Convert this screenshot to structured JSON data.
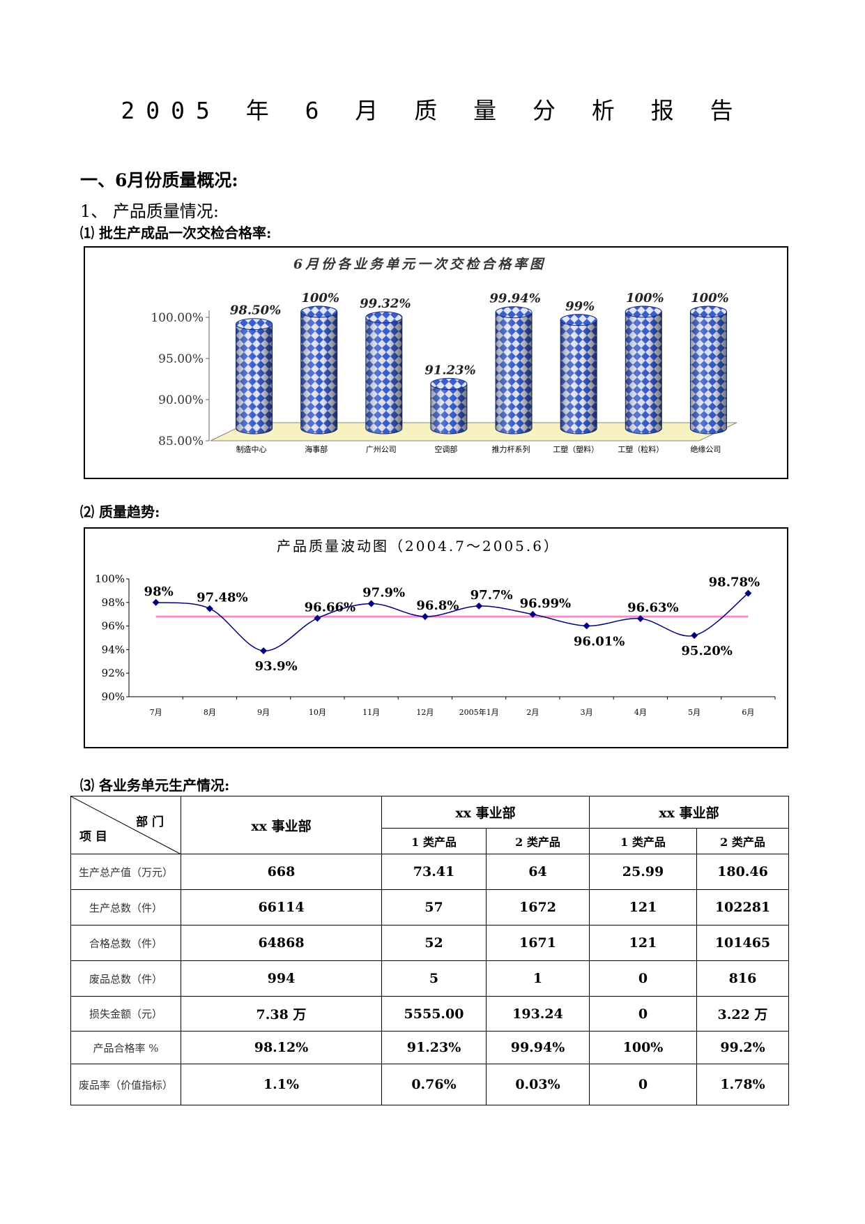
{
  "doc": {
    "title": "2005 年 6 月 质 量 分 析 报 告",
    "section1": "一、6月份质量概况:",
    "sub1": "1、 产品质量情况:",
    "item1": "⑴ 批生产成品一次交检合格率:",
    "item2": "⑵ 质量趋势:",
    "item3": "⑶ 各业务单元生产情况:"
  },
  "chart_data": [
    {
      "type": "bar",
      "title": "6月份各业务单元一次交检合格率图",
      "categories": [
        "制造中心",
        "海事部",
        "广州公司",
        "空调部",
        "推力杆系列",
        "工塑（塑料）",
        "工塑（粒料）",
        "绝缘公司"
      ],
      "values": [
        98.5,
        100,
        99.32,
        91.23,
        99.94,
        99,
        100,
        100
      ],
      "data_labels": [
        "98.50%",
        "100%",
        "99.32%",
        "91.23%",
        "99.94%",
        "99%",
        "100%",
        "100%"
      ],
      "yticks": [
        "100.00%",
        "95.00%",
        "90.00%",
        "85.00%"
      ],
      "ylim": [
        85,
        100
      ],
      "colors": {
        "bar": "#3b5ccc",
        "bar_dark": "#15287a",
        "pattern_light": "#dfe6f7",
        "floor": "#f7f2bf"
      }
    },
    {
      "type": "line",
      "title": "产品质量波动图（2004.7～2005.6）",
      "categories": [
        "7月",
        "8月",
        "9月",
        "10月",
        "11月",
        "12月",
        "2005年1月",
        "2月",
        "3月",
        "4月",
        "5月",
        "6月"
      ],
      "values": [
        98,
        97.48,
        93.9,
        96.66,
        97.9,
        96.8,
        97.7,
        96.99,
        96.01,
        96.63,
        95.2,
        98.78
      ],
      "data_labels": [
        "98%",
        "97.48%",
        "93.9%",
        "96.66%",
        "97.9%",
        "96.8%",
        "97.7%",
        "96.99%",
        "96.01%",
        "96.63%",
        "95.20%",
        "98.78%"
      ],
      "yticks": [
        "100%",
        "98%",
        "96%",
        "94%",
        "92%",
        "90%"
      ],
      "ylim": [
        90,
        100
      ],
      "reference_line": 96.8,
      "colors": {
        "line": "#000080",
        "reference": "#ff88cc"
      }
    }
  ],
  "table": {
    "corner_top": "部 门",
    "corner_bottom": "项 目",
    "dept_main": "xx 事业部",
    "dept_a": "xx 事业部",
    "dept_b": "xx 事业部",
    "sub_a1": "1 类产品",
    "sub_a2": "2 类产品",
    "sub_b1": "1 类产品",
    "sub_b2": "2 类产品",
    "rows": [
      {
        "label": "生产总产值（万元）",
        "values": [
          "668",
          "73.41",
          "64",
          "25.99",
          "180.46"
        ]
      },
      {
        "label": "生产总数（件）",
        "values": [
          "66114",
          "57",
          "1672",
          "121",
          "102281"
        ]
      },
      {
        "label": "合格总数（件）",
        "values": [
          "64868",
          "52",
          "1671",
          "121",
          "101465"
        ]
      },
      {
        "label": "废品总数（件）",
        "values": [
          "994",
          "5",
          "1",
          "0",
          "816"
        ]
      },
      {
        "label": "损失金额（元）",
        "values": [
          "7.38 万",
          "5555.00",
          "193.24",
          "0",
          "3.22 万"
        ]
      },
      {
        "label": "产品合格率 %",
        "values": [
          "98.12%",
          "91.23%",
          "99.94%",
          "100%",
          "99.2%"
        ]
      },
      {
        "label": "废品率（价值指标）",
        "values": [
          "1.1%",
          "0.76%",
          "0.03%",
          "0",
          "1.78%"
        ]
      }
    ]
  }
}
